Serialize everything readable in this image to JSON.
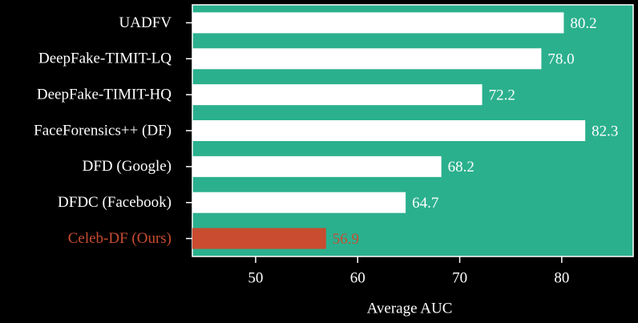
{
  "chart_data": {
    "type": "barh",
    "xlabel": "Average AUC",
    "categories": [
      "UADFV",
      "DeepFake-TIMIT-LQ",
      "DeepFake-TIMIT-HQ",
      "FaceForensics++ (DF)",
      "DFD (Google)",
      "DFDC (Facebook)",
      "Celeb-DF (Ours)"
    ],
    "values": [
      80.2,
      78.0,
      72.2,
      82.3,
      68.2,
      64.7,
      56.9
    ],
    "value_labels": [
      "80.2",
      "78.0",
      "72.2",
      "82.3",
      "68.2",
      "64.7",
      "56.9"
    ],
    "colors": [
      "#ffffff",
      "#ffffff",
      "#ffffff",
      "#ffffff",
      "#ffffff",
      "#ffffff",
      "#c94c30"
    ],
    "text_colors": [
      "#ffffff",
      "#ffffff",
      "#ffffff",
      "#ffffff",
      "#ffffff",
      "#ffffff",
      "#c94c30"
    ],
    "background": "#2bb08e",
    "xlim": [
      43.8,
      87.0
    ],
    "xticks": [
      50,
      60,
      70,
      80
    ]
  }
}
